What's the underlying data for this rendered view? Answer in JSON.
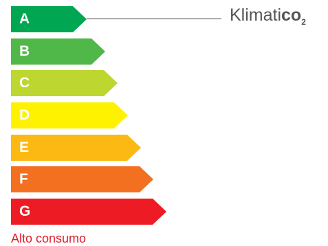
{
  "ratings": [
    {
      "label": "A",
      "color": "#00a651"
    },
    {
      "label": "B",
      "color": "#50b848"
    },
    {
      "label": "C",
      "color": "#bed630"
    },
    {
      "label": "D",
      "color": "#fff200"
    },
    {
      "label": "E",
      "color": "#fdb913"
    },
    {
      "label": "F",
      "color": "#f37021"
    },
    {
      "label": "G",
      "color": "#ed1c24"
    }
  ],
  "brand": {
    "name_light": "Klimati",
    "name_bold": "co",
    "subscript": "2"
  },
  "footer": {
    "label": "Alto consumo"
  }
}
